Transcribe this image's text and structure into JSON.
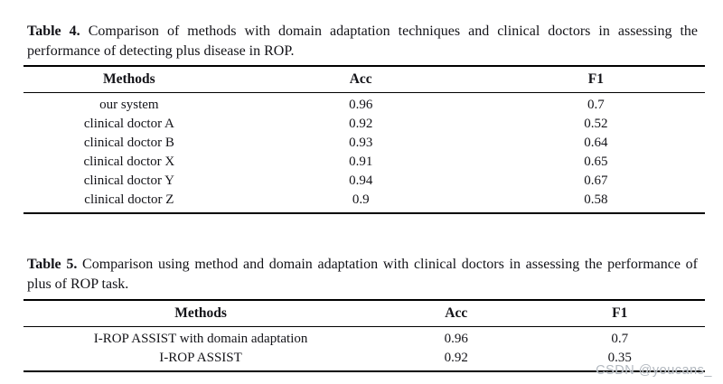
{
  "page": {
    "background": "#ffffff",
    "text_color": "#131318",
    "rule_color": "#000000"
  },
  "tables": [
    {
      "caption_label": "Table 4.",
      "caption_body": "Comparison of methods with domain adaptation techniques and clinical doctors in assessing the performance of detecting plus disease in ROP.",
      "headers": {
        "methods": "Methods",
        "acc": "Acc",
        "f1": "F1"
      },
      "rows": [
        {
          "method": "our system",
          "acc": "0.96",
          "f1": "0.7"
        },
        {
          "method": "clinical doctor A",
          "acc": "0.92",
          "f1": "0.52"
        },
        {
          "method": "clinical doctor B",
          "acc": "0.93",
          "f1": "0.64"
        },
        {
          "method": "clinical doctor X",
          "acc": "0.91",
          "f1": "0.65"
        },
        {
          "method": "clinical doctor Y",
          "acc": "0.94",
          "f1": "0.67"
        },
        {
          "method": "clinical doctor Z",
          "acc": "0.9",
          "f1": "0.58"
        }
      ]
    },
    {
      "caption_label": "Table 5.",
      "caption_body": "Comparison using method and domain adaptation with clinical doctors in assessing the performance of plus of ROP task.",
      "headers": {
        "methods": "Methods",
        "acc": "Acc",
        "f1": "F1"
      },
      "rows": [
        {
          "method": "I-ROP ASSIST with domain adaptation",
          "acc": "0.96",
          "f1": "0.7"
        },
        {
          "method": "I-ROP ASSIST",
          "acc": "0.92",
          "f1": "0.35"
        }
      ]
    }
  ],
  "watermark": {
    "text": "CSDN @youcans_",
    "color": "#b3b9c0"
  }
}
